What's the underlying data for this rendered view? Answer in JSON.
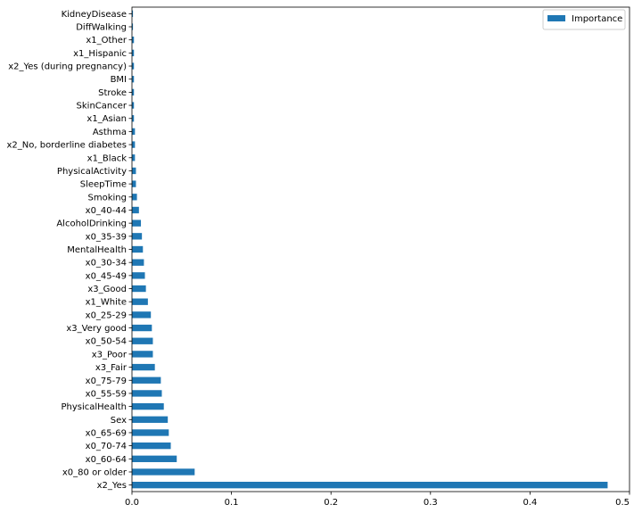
{
  "chart_data": {
    "type": "bar",
    "orientation": "horizontal",
    "title": "",
    "xlabel": "",
    "ylabel": "",
    "xlim": [
      0,
      0.5
    ],
    "xticks": [
      "0.0",
      "0.1",
      "0.2",
      "0.3",
      "0.4",
      "0.5"
    ],
    "grid": false,
    "legend_position": "top-right",
    "bar_color": "#1f77b4",
    "series": [
      {
        "name": "Importance"
      }
    ],
    "categories": [
      "x2_Yes",
      "x0_80 or older",
      "x0_60-64",
      "x0_70-74",
      "x0_65-69",
      "Sex",
      "PhysicalHealth",
      "x0_55-59",
      "x0_75-79",
      "x3_Fair",
      "x3_Poor",
      "x0_50-54",
      "x3_Very good",
      "x0_25-29",
      "x1_White",
      "x3_Good",
      "x0_45-49",
      "x0_30-34",
      "MentalHealth",
      "x0_35-39",
      "AlcoholDrinking",
      "x0_40-44",
      "Smoking",
      "SleepTime",
      "PhysicalActivity",
      "x1_Black",
      "x2_No, borderline diabetes",
      "Asthma",
      "x1_Asian",
      "SkinCancer",
      "Stroke",
      "BMI",
      "x2_Yes (during pregnancy)",
      "x1_Hispanic",
      "x1_Other",
      "DiffWalking",
      "KidneyDisease"
    ],
    "values": [
      0.478,
      0.063,
      0.045,
      0.039,
      0.037,
      0.036,
      0.032,
      0.03,
      0.029,
      0.023,
      0.021,
      0.021,
      0.02,
      0.019,
      0.016,
      0.014,
      0.013,
      0.012,
      0.011,
      0.01,
      0.009,
      0.007,
      0.005,
      0.004,
      0.004,
      0.003,
      0.003,
      0.003,
      0.002,
      0.002,
      0.002,
      0.002,
      0.002,
      0.002,
      0.002,
      0.001,
      0.001
    ]
  }
}
